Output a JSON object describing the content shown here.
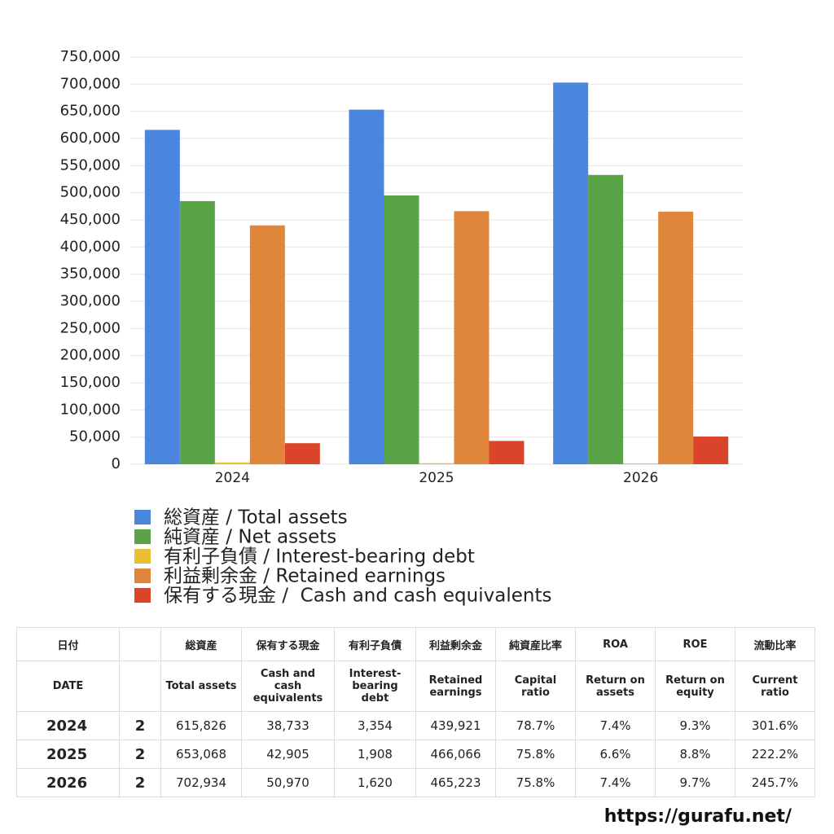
{
  "chart_data": {
    "type": "bar",
    "categories": [
      "2024",
      "2025",
      "2026"
    ],
    "series": [
      {
        "name": "総資産 / Total assets",
        "color": "#4a86e0",
        "values": [
          615826,
          653068,
          702934
        ]
      },
      {
        "name": "純資産 / Net assets",
        "color": "#5aa447",
        "values": [
          484655,
          495026,
          532824
        ]
      },
      {
        "name": "有利子負債 / Interest-bearing debt",
        "color": "#e8c032",
        "values": [
          3354,
          1908,
          1620
        ]
      },
      {
        "name": "利益剰余金 / Retained earnings",
        "color": "#e0863a",
        "values": [
          439921,
          466066,
          465223
        ]
      },
      {
        "name": "保有する現金 /  Cash and cash equivalents",
        "color": "#d9442a",
        "values": [
          38733,
          42905,
          50970
        ]
      }
    ],
    "ylim": [
      0,
      750000
    ],
    "yticks": [
      0,
      {
        "value": 50000,
        "label": "50,000"
      },
      {
        "value": 100000,
        "label": "100,000"
      },
      {
        "value": 150000,
        "label": "150,000"
      },
      {
        "value": 200000,
        "label": "200,000"
      },
      {
        "value": 250000,
        "label": "250,000"
      },
      {
        "value": 300000,
        "label": "300,000"
      },
      {
        "value": 350000,
        "label": "350,000"
      },
      {
        "value": 400000,
        "label": "400,000"
      },
      {
        "value": 450000,
        "label": "450,000"
      },
      {
        "value": 500000,
        "label": "500,000"
      },
      {
        "value": 550000,
        "label": "550,000"
      },
      {
        "value": 600000,
        "label": "600,000"
      },
      {
        "value": 650000,
        "label": "650,000"
      },
      {
        "value": 700000,
        "label": "700,000"
      },
      {
        "value": 750000,
        "label": "750,000"
      }
    ],
    "grid": true
  },
  "table": {
    "date_header": {
      "ja": "日付",
      "en": "DATE"
    },
    "columns": [
      {
        "ja": "総資産",
        "en": "Total assets"
      },
      {
        "ja": "保有する現金",
        "en": "Cash and cash equivalents"
      },
      {
        "ja": "有利子負債",
        "en": "Interest-bearing debt"
      },
      {
        "ja": "利益剰余金",
        "en": "Retained earnings"
      },
      {
        "ja": "純資産比率",
        "en": "Capital ratio"
      },
      {
        "ja": "ROA",
        "en": "Return on assets"
      },
      {
        "ja": "ROE",
        "en": "Return on equity"
      },
      {
        "ja": "流動比率",
        "en": "Current ratio"
      }
    ],
    "rows": [
      {
        "year": "2024",
        "n": "2",
        "cells": [
          "615,826",
          "38,733",
          "3,354",
          "439,921",
          "78.7%",
          "7.4%",
          "9.3%",
          "301.6%"
        ]
      },
      {
        "year": "2025",
        "n": "2",
        "cells": [
          "653,068",
          "42,905",
          "1,908",
          "466,066",
          "75.8%",
          "6.6%",
          "8.8%",
          "222.2%"
        ]
      },
      {
        "year": "2026",
        "n": "2",
        "cells": [
          "702,934",
          "50,970",
          "1,620",
          "465,223",
          "75.8%",
          "7.4%",
          "9.7%",
          "245.7%"
        ]
      }
    ]
  },
  "footer": "https://gurafu.net/"
}
